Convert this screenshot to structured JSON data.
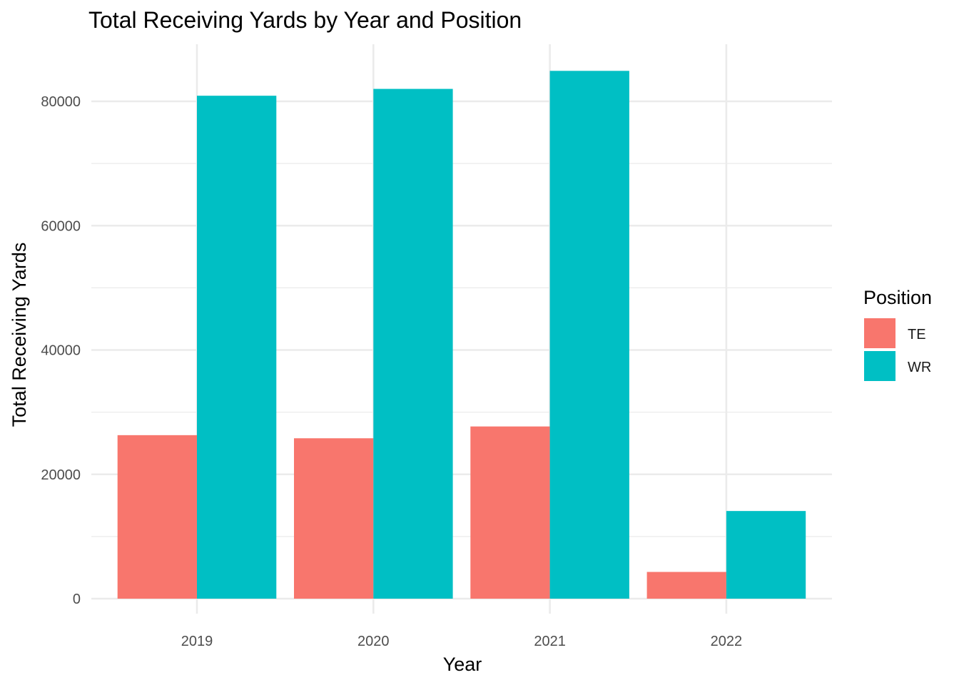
{
  "chart_data": {
    "type": "bar",
    "title": "Total Receiving Yards by Year and Position",
    "xlabel": "Year",
    "ylabel": "Total Receiving Yards",
    "categories": [
      "2019",
      "2020",
      "2021",
      "2022"
    ],
    "series": [
      {
        "name": "TE",
        "color": "#F8766D",
        "values": [
          26300,
          25800,
          27700,
          4300
        ]
      },
      {
        "name": "WR",
        "color": "#00BFC4",
        "values": [
          80900,
          82000,
          84900,
          14100
        ]
      }
    ],
    "ylim": [
      0,
      85000
    ],
    "yticks": [
      0,
      20000,
      40000,
      60000,
      80000
    ],
    "ytick_labels": [
      "0",
      "20000",
      "40000",
      "60000",
      "80000"
    ],
    "legend": {
      "title": "Position",
      "position": "right",
      "entries": [
        "TE",
        "WR"
      ]
    },
    "grid": true,
    "bar_mode": "dodge"
  }
}
